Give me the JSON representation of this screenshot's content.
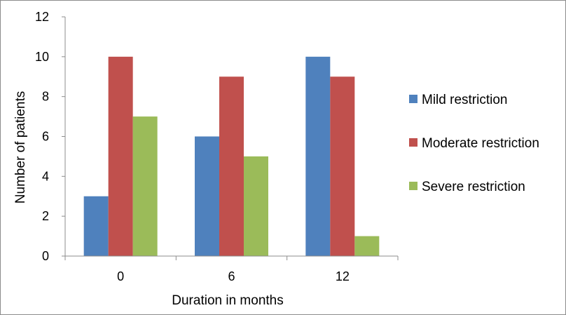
{
  "chart_data": {
    "type": "bar",
    "title": "",
    "xlabel": "Duration in months",
    "ylabel": "Number of patients",
    "categories": [
      "0",
      "6",
      "12"
    ],
    "ylim": [
      0,
      12
    ],
    "yticks": [
      "0",
      "2",
      "4",
      "6",
      "8",
      "10",
      "12"
    ],
    "grid": false,
    "legend_position": "right",
    "series": [
      {
        "name": "Mild restriction",
        "values": [
          3,
          6,
          10
        ],
        "color": "#4f81bd"
      },
      {
        "name": "Moderate restriction",
        "values": [
          10,
          9,
          9
        ],
        "color": "#c0504d"
      },
      {
        "name": "Severe restriction",
        "values": [
          7,
          5,
          1
        ],
        "color": "#9bbb59"
      }
    ]
  }
}
